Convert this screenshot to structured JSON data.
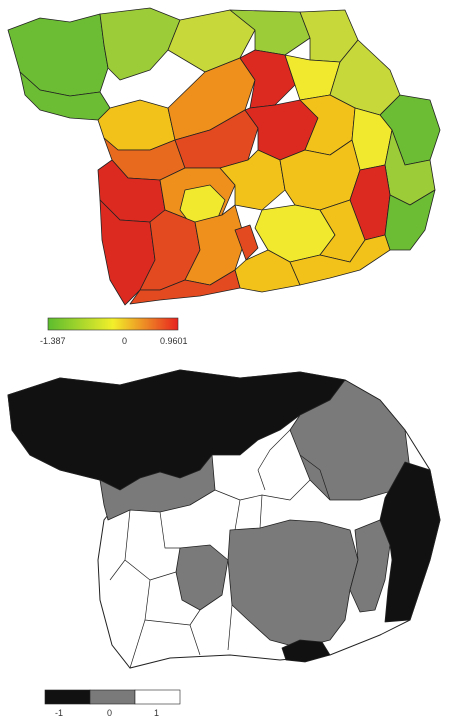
{
  "map1": {
    "legend": {
      "min_label": "-1.387",
      "mid_label": "0",
      "max_label": "0.9601",
      "colors": [
        "#5cbd2e",
        "#f2ef2a",
        "#e8231f"
      ]
    },
    "palette": {
      "green": "#6cbd34",
      "lightgreen": "#9ccc38",
      "yellowgreen": "#c6d83a",
      "yellow": "#f1e92e",
      "gold": "#f3c21a",
      "orange": "#ef8f1c",
      "darkorange": "#e86a1e",
      "redorange": "#e34a1f",
      "red": "#dd2a20"
    }
  },
  "map2": {
    "legend": {
      "labels": [
        "-1",
        "0",
        "1"
      ],
      "colors": [
        "#111111",
        "#7a7a7a",
        "#ffffff"
      ]
    }
  }
}
